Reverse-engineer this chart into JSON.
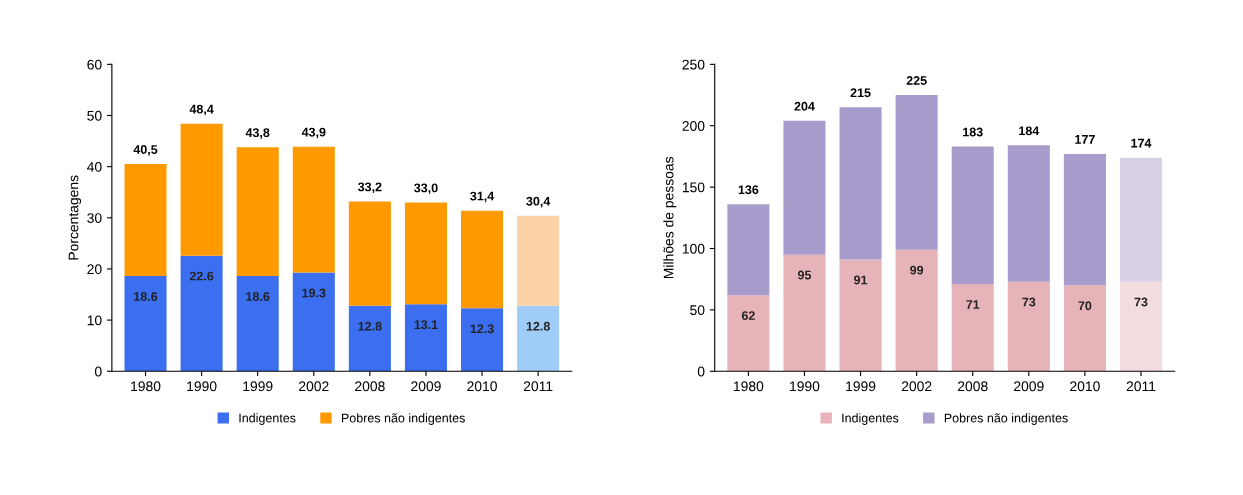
{
  "chart_data": [
    {
      "type": "bar",
      "stacked": true,
      "ylabel": "Porcentagens",
      "categories": [
        "1980",
        "1990",
        "1999",
        "2002",
        "2008",
        "2009",
        "2010",
        "2011"
      ],
      "ylim": [
        0,
        60
      ],
      "yticks": [
        0,
        10,
        20,
        30,
        40,
        50,
        60
      ],
      "grid": false,
      "legend": "bottom",
      "series": [
        {
          "name": "Indigentes",
          "color": "#3b6ff0",
          "colors": [
            "#3b6ff0",
            "#3b6ff0",
            "#3b6ff0",
            "#3b6ff0",
            "#3b6ff0",
            "#3b6ff0",
            "#3b6ff0",
            "#9fcdf7"
          ],
          "values": [
            18.6,
            22.6,
            18.6,
            19.3,
            12.8,
            13.1,
            12.3,
            12.8
          ],
          "value_labels": [
            "18.6",
            "22.6",
            "18.6",
            "19.3",
            "12.8",
            "13.1",
            "12.3",
            "12.8"
          ]
        },
        {
          "name": "Pobres não indigentes",
          "color": "#ff9900",
          "colors": [
            "#ff9900",
            "#ff9900",
            "#ff9900",
            "#ff9900",
            "#ff9900",
            "#ff9900",
            "#ff9900",
            "#fdd2a6"
          ],
          "values": [
            21.9,
            25.8,
            25.2,
            24.6,
            20.4,
            19.9,
            19.1,
            17.6
          ]
        }
      ],
      "totals": [
        "40,5",
        "48,4",
        "43,8",
        "43,9",
        "33,2",
        "33,0",
        "31,4",
        "30,4"
      ]
    },
    {
      "type": "bar",
      "stacked": true,
      "ylabel": "Milhões de pessoas",
      "categories": [
        "1980",
        "1990",
        "1999",
        "2002",
        "2008",
        "2009",
        "2010",
        "2011"
      ],
      "ylim": [
        0,
        250
      ],
      "yticks": [
        0,
        50,
        100,
        150,
        200,
        250
      ],
      "grid": false,
      "legend": "bottom",
      "series": [
        {
          "name": "Indigentes",
          "color": "#e6b3b8",
          "colors": [
            "#e6b3b8",
            "#e6b3b8",
            "#e6b3b8",
            "#e6b3b8",
            "#e6b3b8",
            "#e6b3b8",
            "#e6b3b8",
            "#f3dcdd"
          ],
          "values": [
            62,
            95,
            91,
            99,
            71,
            73,
            70,
            73
          ],
          "value_labels": [
            "62",
            "95",
            "91",
            "99",
            "71",
            "73",
            "70",
            "73"
          ]
        },
        {
          "name": "Pobres não indigentes",
          "color": "#a89ccd",
          "colors": [
            "#a89ccd",
            "#a89ccd",
            "#a89ccd",
            "#a89ccd",
            "#a89ccd",
            "#a89ccd",
            "#a89ccd",
            "#dad1e8"
          ],
          "values": [
            74,
            109,
            124,
            126,
            112,
            111,
            107,
            101
          ]
        }
      ],
      "totals": [
        "136",
        "204",
        "215",
        "225",
        "183",
        "184",
        "177",
        "174"
      ]
    }
  ]
}
